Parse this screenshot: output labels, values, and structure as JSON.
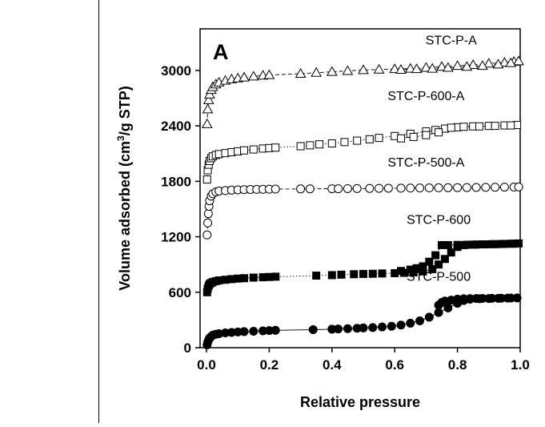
{
  "chart_data": {
    "type": "scatter",
    "panel_label": "A",
    "xlabel": "Relative pressure",
    "ylabel_parts": [
      "Volume adsorbed (cm",
      "3",
      "/g STP)"
    ],
    "xlim": [
      0,
      1.0
    ],
    "ylim": [
      0,
      3450
    ],
    "xticks": [
      0.0,
      0.2,
      0.4,
      0.6,
      0.8,
      1.0
    ],
    "xtick_labels": [
      "0.0",
      "0.2",
      "0.4",
      "0.6",
      "0.8",
      "1.0"
    ],
    "yticks": [
      0,
      600,
      1200,
      1800,
      2400,
      3000
    ],
    "ytick_labels": [
      "0",
      "600",
      "1200",
      "1800",
      "2400",
      "3000"
    ],
    "grid": false,
    "legend": "none",
    "series": [
      {
        "name": "STC-P-A",
        "marker": "triangle-open",
        "connector": "dashed",
        "adsorption": [
          [
            0.002,
            2420
          ],
          [
            0.004,
            2580
          ],
          [
            0.007,
            2680
          ],
          [
            0.01,
            2740
          ],
          [
            0.015,
            2790
          ],
          [
            0.02,
            2820
          ],
          [
            0.03,
            2850
          ],
          [
            0.04,
            2870
          ],
          [
            0.06,
            2890
          ],
          [
            0.08,
            2905
          ],
          [
            0.1,
            2915
          ],
          [
            0.12,
            2925
          ],
          [
            0.15,
            2935
          ],
          [
            0.18,
            2945
          ],
          [
            0.2,
            2950
          ],
          [
            0.3,
            2965
          ],
          [
            0.35,
            2975
          ],
          [
            0.4,
            2985
          ],
          [
            0.45,
            2995
          ],
          [
            0.5,
            3005
          ],
          [
            0.55,
            3010
          ],
          [
            0.6,
            3015
          ],
          [
            0.65,
            3020
          ],
          [
            0.7,
            3030
          ],
          [
            0.75,
            3040
          ],
          [
            0.8,
            3050
          ],
          [
            0.85,
            3060
          ],
          [
            0.9,
            3075
          ],
          [
            0.95,
            3085
          ],
          [
            0.98,
            3095
          ],
          [
            0.995,
            3100
          ]
        ],
        "desorption": [
          [
            0.97,
            3080
          ],
          [
            0.93,
            3065
          ],
          [
            0.88,
            3050
          ],
          [
            0.83,
            3040
          ],
          [
            0.77,
            3030
          ],
          [
            0.72,
            3020
          ],
          [
            0.67,
            3015
          ],
          [
            0.62,
            3008
          ]
        ]
      },
      {
        "name": "STC-P-600-A",
        "marker": "square-open",
        "connector": "dotted",
        "adsorption": [
          [
            0.002,
            1820
          ],
          [
            0.004,
            1920
          ],
          [
            0.007,
            1980
          ],
          [
            0.01,
            2020
          ],
          [
            0.015,
            2050
          ],
          [
            0.02,
            2070
          ],
          [
            0.03,
            2085
          ],
          [
            0.04,
            2095
          ],
          [
            0.06,
            2105
          ],
          [
            0.08,
            2115
          ],
          [
            0.1,
            2125
          ],
          [
            0.12,
            2135
          ],
          [
            0.15,
            2145
          ],
          [
            0.18,
            2155
          ],
          [
            0.2,
            2160
          ],
          [
            0.22,
            2165
          ],
          [
            0.3,
            2180
          ],
          [
            0.33,
            2190
          ],
          [
            0.36,
            2200
          ],
          [
            0.4,
            2210
          ],
          [
            0.44,
            2225
          ],
          [
            0.48,
            2240
          ],
          [
            0.52,
            2255
          ],
          [
            0.55,
            2270
          ],
          [
            0.6,
            2290
          ],
          [
            0.65,
            2315
          ],
          [
            0.7,
            2340
          ],
          [
            0.73,
            2355
          ],
          [
            0.76,
            2370
          ],
          [
            0.8,
            2385
          ],
          [
            0.85,
            2395
          ],
          [
            0.9,
            2400
          ],
          [
            0.95,
            2405
          ],
          [
            0.99,
            2410
          ]
        ],
        "desorption": [
          [
            0.97,
            2405
          ],
          [
            0.92,
            2400
          ],
          [
            0.87,
            2395
          ],
          [
            0.82,
            2390
          ],
          [
            0.78,
            2380
          ],
          [
            0.74,
            2330
          ],
          [
            0.7,
            2300
          ],
          [
            0.66,
            2280
          ],
          [
            0.62,
            2265
          ]
        ]
      },
      {
        "name": "STC-P-500-A",
        "marker": "circle-open",
        "connector": "dashed",
        "adsorption": [
          [
            0.002,
            1220
          ],
          [
            0.004,
            1350
          ],
          [
            0.006,
            1450
          ],
          [
            0.008,
            1530
          ],
          [
            0.01,
            1590
          ],
          [
            0.015,
            1640
          ],
          [
            0.02,
            1665
          ],
          [
            0.03,
            1685
          ],
          [
            0.04,
            1695
          ],
          [
            0.06,
            1700
          ],
          [
            0.08,
            1705
          ],
          [
            0.1,
            1708
          ],
          [
            0.12,
            1710
          ],
          [
            0.14,
            1712
          ],
          [
            0.16,
            1713
          ],
          [
            0.18,
            1714
          ],
          [
            0.2,
            1715
          ],
          [
            0.22,
            1716
          ],
          [
            0.3,
            1718
          ],
          [
            0.33,
            1719
          ],
          [
            0.4,
            1720
          ],
          [
            0.42,
            1720
          ],
          [
            0.45,
            1721
          ],
          [
            0.48,
            1722
          ],
          [
            0.52,
            1723
          ],
          [
            0.55,
            1724
          ],
          [
            0.58,
            1725
          ],
          [
            0.62,
            1726
          ],
          [
            0.65,
            1727
          ],
          [
            0.68,
            1728
          ],
          [
            0.71,
            1729
          ],
          [
            0.74,
            1730
          ],
          [
            0.77,
            1731
          ],
          [
            0.8,
            1732
          ],
          [
            0.83,
            1733
          ],
          [
            0.86,
            1734
          ],
          [
            0.89,
            1735
          ],
          [
            0.92,
            1736
          ],
          [
            0.95,
            1737
          ],
          [
            0.98,
            1738
          ],
          [
            0.995,
            1740
          ]
        ],
        "desorption": []
      },
      {
        "name": "STC-P-600",
        "marker": "square-filled",
        "connector": "dotted",
        "adsorption": [
          [
            0.002,
            600
          ],
          [
            0.004,
            640
          ],
          [
            0.007,
            670
          ],
          [
            0.01,
            690
          ],
          [
            0.015,
            700
          ],
          [
            0.02,
            710
          ],
          [
            0.03,
            720
          ],
          [
            0.04,
            728
          ],
          [
            0.06,
            735
          ],
          [
            0.08,
            742
          ],
          [
            0.1,
            748
          ],
          [
            0.12,
            752
          ],
          [
            0.15,
            758
          ],
          [
            0.18,
            762
          ],
          [
            0.2,
            765
          ],
          [
            0.22,
            768
          ],
          [
            0.35,
            780
          ],
          [
            0.4,
            785
          ],
          [
            0.43,
            790
          ],
          [
            0.47,
            795
          ],
          [
            0.5,
            798
          ],
          [
            0.53,
            800
          ],
          [
            0.56,
            803
          ],
          [
            0.6,
            806
          ],
          [
            0.63,
            810
          ],
          [
            0.66,
            815
          ],
          [
            0.69,
            825
          ],
          [
            0.72,
            850
          ],
          [
            0.74,
            900
          ],
          [
            0.76,
            960
          ],
          [
            0.78,
            1030
          ],
          [
            0.8,
            1090
          ],
          [
            0.82,
            1110
          ],
          [
            0.85,
            1115
          ],
          [
            0.88,
            1118
          ],
          [
            0.91,
            1120
          ],
          [
            0.94,
            1122
          ],
          [
            0.97,
            1125
          ],
          [
            0.995,
            1128
          ]
        ],
        "desorption": [
          [
            0.98,
            1125
          ],
          [
            0.95,
            1123
          ],
          [
            0.92,
            1120
          ],
          [
            0.89,
            1118
          ],
          [
            0.86,
            1116
          ],
          [
            0.83,
            1114
          ],
          [
            0.8,
            1112
          ],
          [
            0.77,
            1110
          ],
          [
            0.75,
            1110
          ],
          [
            0.73,
            1000
          ],
          [
            0.71,
            930
          ],
          [
            0.69,
            880
          ],
          [
            0.67,
            860
          ],
          [
            0.65,
            845
          ],
          [
            0.62,
            830
          ]
        ]
      },
      {
        "name": "STC-P-500",
        "marker": "circle-filled",
        "connector": "solid",
        "adsorption": [
          [
            0.002,
            30
          ],
          [
            0.004,
            60
          ],
          [
            0.007,
            85
          ],
          [
            0.01,
            105
          ],
          [
            0.015,
            120
          ],
          [
            0.02,
            135
          ],
          [
            0.03,
            145
          ],
          [
            0.04,
            152
          ],
          [
            0.06,
            160
          ],
          [
            0.08,
            165
          ],
          [
            0.1,
            170
          ],
          [
            0.12,
            174
          ],
          [
            0.15,
            178
          ],
          [
            0.18,
            182
          ],
          [
            0.2,
            185
          ],
          [
            0.22,
            188
          ],
          [
            0.34,
            195
          ],
          [
            0.4,
            200
          ],
          [
            0.42,
            203
          ],
          [
            0.45,
            206
          ],
          [
            0.48,
            210
          ],
          [
            0.5,
            214
          ],
          [
            0.53,
            218
          ],
          [
            0.56,
            224
          ],
          [
            0.59,
            232
          ],
          [
            0.62,
            245
          ],
          [
            0.65,
            265
          ],
          [
            0.68,
            290
          ],
          [
            0.71,
            330
          ],
          [
            0.74,
            380
          ],
          [
            0.77,
            430
          ],
          [
            0.8,
            480
          ],
          [
            0.82,
            510
          ],
          [
            0.84,
            525
          ],
          [
            0.87,
            530
          ],
          [
            0.9,
            532
          ],
          [
            0.93,
            534
          ],
          [
            0.96,
            536
          ],
          [
            0.99,
            538
          ]
        ],
        "desorption": [
          [
            0.97,
            537
          ],
          [
            0.94,
            535
          ],
          [
            0.91,
            534
          ],
          [
            0.88,
            533
          ],
          [
            0.86,
            532
          ],
          [
            0.84,
            531
          ],
          [
            0.82,
            530
          ],
          [
            0.8,
            525
          ],
          [
            0.78,
            515
          ],
          [
            0.76,
            505
          ],
          [
            0.75,
            490
          ],
          [
            0.74,
            460
          ]
        ]
      }
    ],
    "series_labels": [
      {
        "text": "STC-P-A",
        "at": [
          0.78,
          3280
        ]
      },
      {
        "text": "STC-P-600-A",
        "at": [
          0.7,
          2680
        ]
      },
      {
        "text": "STC-P-500-A",
        "at": [
          0.7,
          1960
        ]
      },
      {
        "text": "STC-P-600",
        "at": [
          0.74,
          1340
        ]
      },
      {
        "text": "STC-P-500",
        "at": [
          0.74,
          725
        ]
      }
    ]
  }
}
